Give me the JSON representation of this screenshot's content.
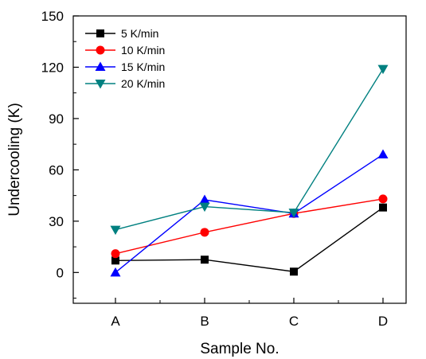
{
  "chart_data": {
    "type": "line",
    "title": "",
    "xlabel": "Sample No.",
    "ylabel": "Undercooling (K)",
    "categories": [
      "A",
      "B",
      "C",
      "D"
    ],
    "ylim": [
      -18,
      150
    ],
    "yticks": [
      0,
      30,
      60,
      90,
      120,
      150
    ],
    "ytick_labels": [
      "0",
      "30",
      "60",
      "90",
      "120",
      "150"
    ],
    "grid": false,
    "legend_position": "top-left",
    "series": [
      {
        "name": "5 K/min",
        "values": [
          7,
          7.5,
          0.5,
          38
        ],
        "color": "#000000",
        "marker": "square"
      },
      {
        "name": "10 K/min",
        "values": [
          11,
          23.5,
          34.5,
          43
        ],
        "color": "#ff0000",
        "marker": "circle"
      },
      {
        "name": "15 K/min",
        "values": [
          0,
          42.5,
          34.5,
          69
        ],
        "color": "#0000ff",
        "marker": "triangle-up"
      },
      {
        "name": "20 K/min",
        "values": [
          25,
          38.5,
          35,
          119
        ],
        "color": "#008080",
        "marker": "triangle-down"
      }
    ]
  }
}
